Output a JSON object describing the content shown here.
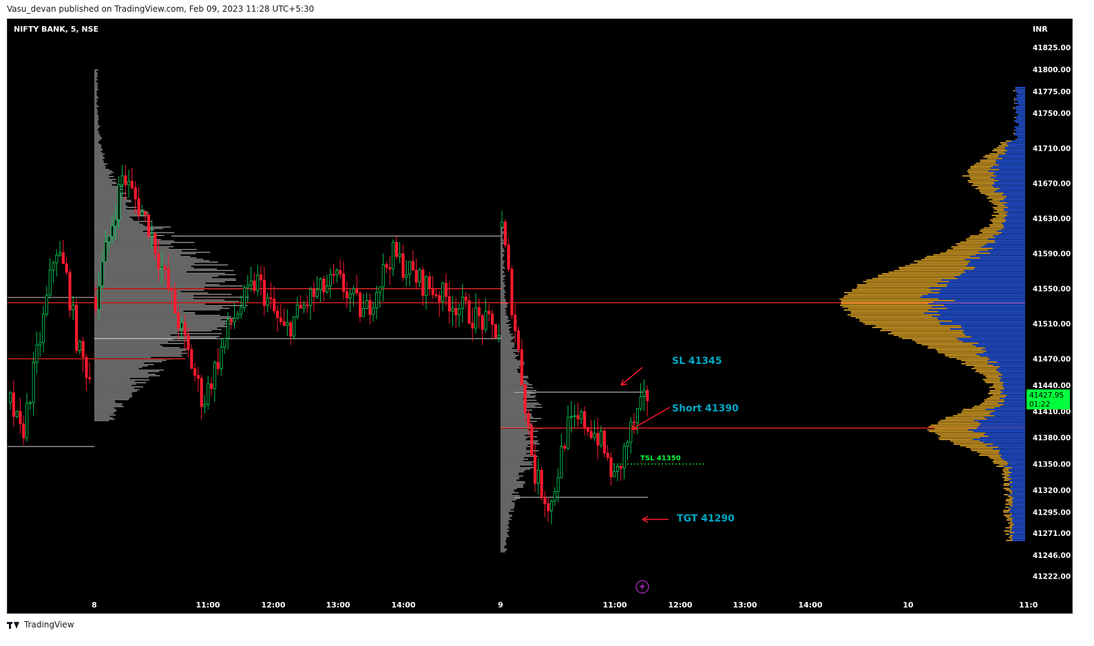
{
  "header": {
    "published_by": "Vasu_devan published on TradingView.com, Feb 09, 2023 11:28 UTC+5:30"
  },
  "footer": {
    "brand": "TradingView"
  },
  "chart_data": {
    "type": "candlestick",
    "symbol": "NIFTY BANK, 5, NSE",
    "currency": "INR",
    "ylim": [
      41210,
      41840
    ],
    "y_ticks": [
      "41825.00",
      "41800.00",
      "41775.00",
      "41750.00",
      "41710.00",
      "41670.00",
      "41630.00",
      "41590.00",
      "41550.00",
      "41510.00",
      "41470.00",
      "41440.00",
      "41410.00",
      "41380.00",
      "41350.00",
      "41320.00",
      "41295.00",
      "41271.00",
      "41246.00",
      "41222.00"
    ],
    "x_ticks": [
      "8",
      "11:00",
      "12:00",
      "13:00",
      "14:00",
      "9",
      "11:00",
      "12:00",
      "13:00",
      "14:00",
      "10",
      "11:0"
    ],
    "last_price": {
      "value": "41427.95",
      "countdown": "01:22"
    },
    "annotations": [
      {
        "label": "SL 41345",
        "color": "#00a8c6"
      },
      {
        "label": "Short 41390",
        "color": "#00a8c6"
      },
      {
        "label": "TSL 41350",
        "color": "#00ff3c"
      },
      {
        "label": "TGT 41290",
        "color": "#00a8c6"
      }
    ],
    "horizontal_levels": [
      41534,
      41470,
      41610,
      41493,
      41391,
      41432,
      41312,
      41370
    ],
    "colors": {
      "up": "#00c853",
      "down": "#ff1a2e",
      "profile_gray": "#9e9e9e",
      "profile_yellow": "#f9b82a",
      "profile_blue": "#2962ff",
      "price_badge": "#00ff3c",
      "level_red": "#ff2a2a",
      "level_gray": "#b0b0b0"
    }
  }
}
